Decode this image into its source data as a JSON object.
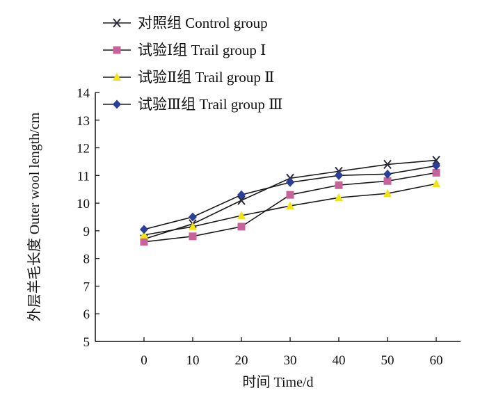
{
  "chart_data": {
    "type": "line",
    "xlabel": "时间 Time/d",
    "ylabel": "外层羊毛长度 Outer wool length/cm",
    "x": [
      0,
      10,
      20,
      30,
      40,
      50,
      60
    ],
    "x_tick_labels": [
      "0",
      "10",
      "20",
      "30",
      "40",
      "50",
      "60"
    ],
    "y_tick_labels": [
      "5",
      "6",
      "7",
      "8",
      "9",
      "10",
      "11",
      "12",
      "13",
      "14"
    ],
    "xlim": [
      -10,
      65
    ],
    "ylim": [
      5,
      14
    ],
    "grid": false,
    "legend_position": "top-left",
    "series": [
      {
        "name": "对照组 Control group",
        "marker": "x-cross",
        "color": "#2a2a3a",
        "values": [
          8.7,
          9.25,
          10.1,
          10.9,
          11.15,
          11.4,
          11.55
        ]
      },
      {
        "name": "试验Ⅰ组 Trail group Ⅰ",
        "marker": "square",
        "color": "#c8629a",
        "values": [
          8.6,
          8.8,
          9.15,
          10.3,
          10.65,
          10.8,
          11.1
        ]
      },
      {
        "name": "试验Ⅱ组 Trail group Ⅱ",
        "marker": "triangle",
        "color": "#f2e21a",
        "values": [
          8.85,
          9.15,
          9.55,
          9.9,
          10.2,
          10.35,
          10.7
        ]
      },
      {
        "name": "试验Ⅲ组 Trail group Ⅲ",
        "marker": "diamond",
        "color": "#2a3f99",
        "values": [
          9.05,
          9.5,
          10.3,
          10.75,
          11.0,
          11.05,
          11.35
        ]
      }
    ]
  }
}
